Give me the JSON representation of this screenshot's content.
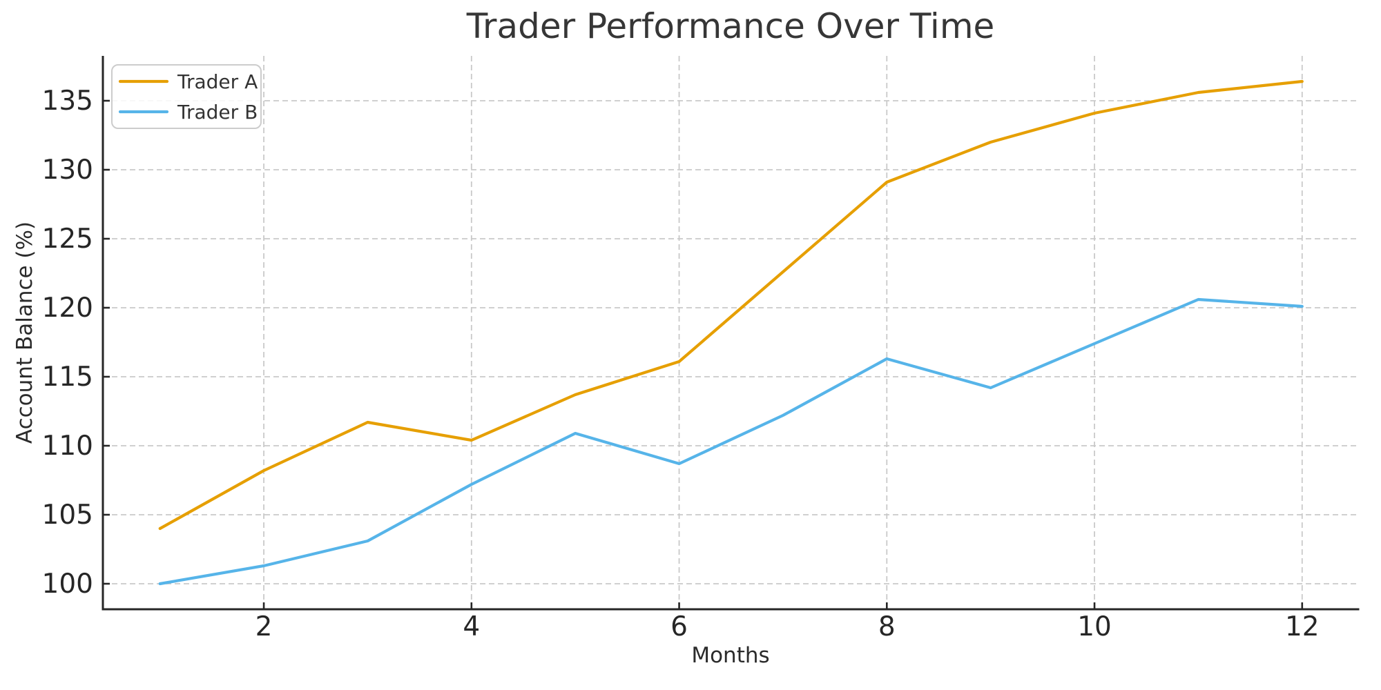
{
  "figure": {
    "title": "Trader Performance Over Time",
    "background_color": "#ffffff"
  },
  "chart_data": {
    "type": "line",
    "title": "Trader Performance Over Time",
    "xlabel": "Months",
    "ylabel": "Account Balance (%)",
    "x": [
      1,
      2,
      3,
      4,
      5,
      6,
      7,
      8,
      9,
      10,
      11,
      12
    ],
    "series": [
      {
        "name": "Trader A",
        "color": "#E69F00",
        "values": [
          104.0,
          108.2,
          111.7,
          110.4,
          113.7,
          116.1,
          122.6,
          129.1,
          132.0,
          134.1,
          135.6,
          136.4
        ]
      },
      {
        "name": "Trader B",
        "color": "#56B4E9",
        "values": [
          100.0,
          101.3,
          103.1,
          107.2,
          110.9,
          108.7,
          112.2,
          116.3,
          114.2,
          117.4,
          120.6,
          120.1
        ]
      }
    ],
    "xlim": [
      0.45,
      12.55
    ],
    "ylim": [
      98.15,
      138.25
    ],
    "xticks": [
      2,
      4,
      6,
      8,
      10,
      12
    ],
    "yticks": [
      100,
      105,
      110,
      115,
      120,
      125,
      130,
      135
    ],
    "grid": "dashed",
    "grid_color": "#c9c9c9",
    "spine_color": "#262626",
    "legend_position": "upper-left",
    "line_width": 4.2
  }
}
